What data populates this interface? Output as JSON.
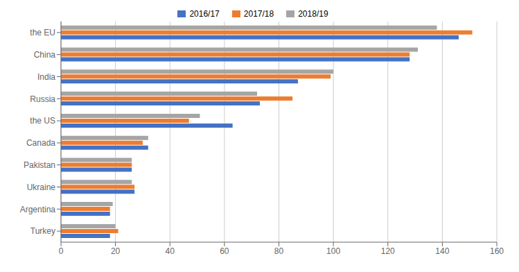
{
  "chart_data": {
    "type": "bar",
    "orientation": "horizontal",
    "categories": [
      "the EU",
      "China",
      "India",
      "Russia",
      "the US",
      "Canada",
      "Pakistan",
      "Ukraine",
      "Argentina",
      "Turkey"
    ],
    "series": [
      {
        "name": "2016/17",
        "color": "#4472C4",
        "values": [
          146,
          128,
          87,
          73,
          63,
          32,
          26,
          27,
          18,
          18
        ]
      },
      {
        "name": "2017/18",
        "color": "#ED7D31",
        "values": [
          151,
          128,
          99,
          85,
          47,
          30,
          26,
          27,
          18,
          21
        ]
      },
      {
        "name": "2018/19",
        "color": "#A5A5A5",
        "values": [
          138,
          131,
          100,
          72,
          51,
          32,
          26,
          26,
          19,
          20
        ]
      }
    ],
    "xlim": [
      0,
      160
    ],
    "xticks": [
      0,
      20,
      40,
      60,
      80,
      100,
      120,
      140,
      160
    ],
    "grid": true,
    "legend": "top"
  }
}
